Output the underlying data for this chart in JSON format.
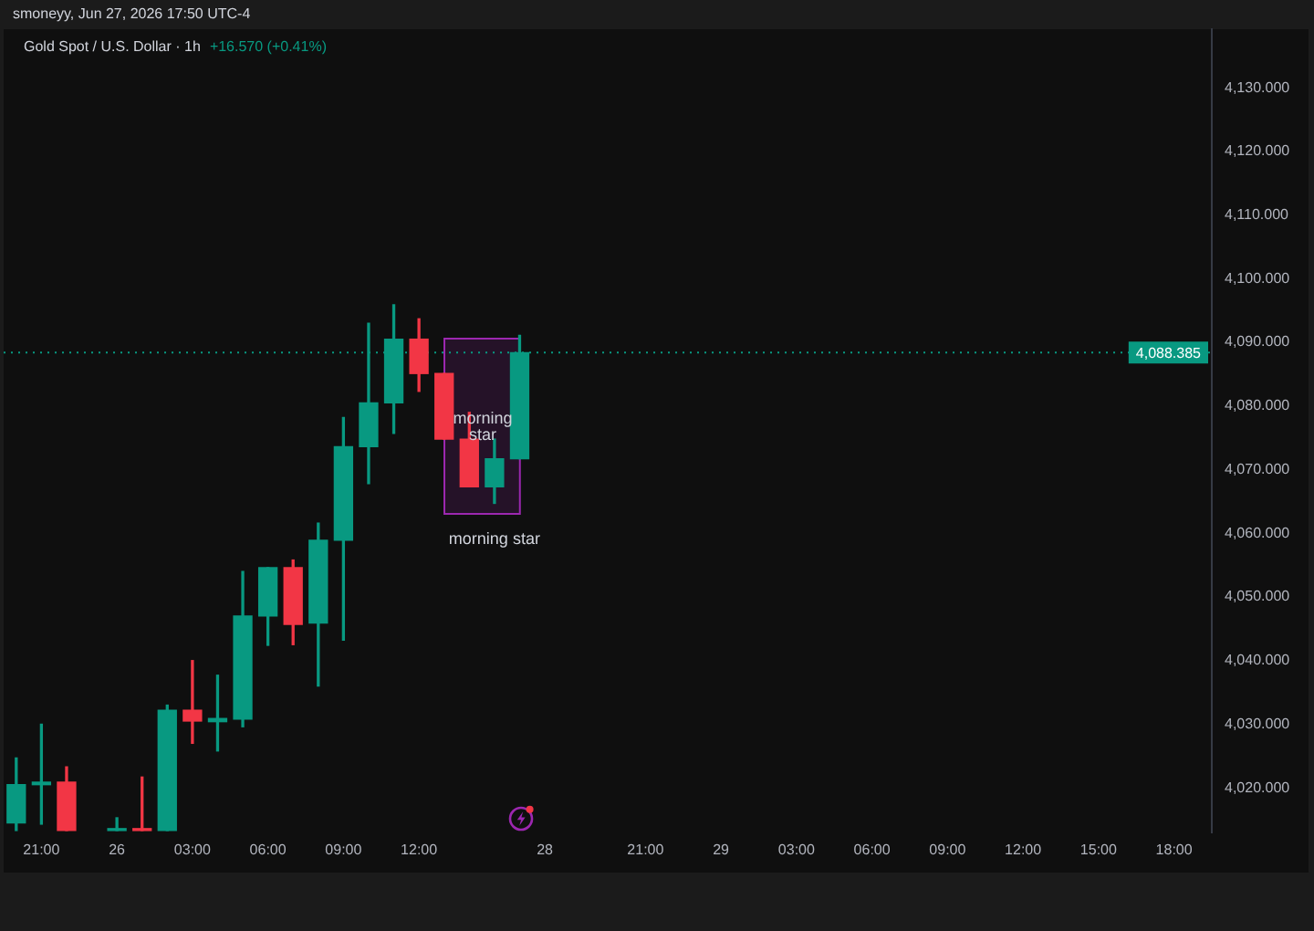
{
  "chart_data": {
    "type": "candlestick",
    "title": "Gold Spot / U.S. Dollar · 1h",
    "subtitle": "+16.570 (+0.41%)",
    "annotations": [
      "smoneyy, Jun 27, 2026 17:50 UTC-4",
      "morning star",
      "morning star"
    ],
    "categories": [
      null,
      "21:00",
      null,
      null,
      "26",
      null,
      null,
      "03:00",
      null,
      null,
      "06:00",
      null,
      null,
      "09:00",
      null,
      null,
      "12:00",
      null,
      null,
      null,
      null,
      "28",
      null,
      null,
      null,
      "21:00",
      null,
      null,
      "29",
      null,
      null,
      "03:00",
      null,
      null,
      "06:00",
      null,
      null,
      "09:00",
      null,
      null,
      "12:00",
      null,
      null,
      "15:00",
      null,
      null,
      "18:00",
      null
    ],
    "ohlc": [
      [
        4014.5,
        4024.7,
        4013.3,
        4020.5
      ],
      [
        4020.5,
        4030.0,
        4014.3,
        4020.9
      ],
      [
        4020.9,
        4023.3,
        4013.3,
        4013.3
      ],
      null,
      [
        4013.3,
        4015.3,
        4013.3,
        4013.6
      ],
      [
        4013.6,
        4021.7,
        4013.3,
        4013.3
      ],
      [
        4013.3,
        4033.0,
        4013.3,
        4032.2
      ],
      [
        4032.2,
        4040.0,
        4027.0,
        4030.5
      ],
      [
        4030.4,
        4037.7,
        4025.8,
        4030.9
      ],
      [
        4030.8,
        4054.0,
        4029.6,
        4047.0
      ],
      [
        4047.0,
        4054.6,
        4042.4,
        4054.6
      ],
      [
        4054.6,
        4055.8,
        4042.5,
        4045.7
      ],
      [
        4045.9,
        4061.6,
        4036.0,
        4058.9
      ],
      [
        4058.9,
        4078.2,
        4043.2,
        4073.6
      ],
      [
        4073.6,
        4093.0,
        4067.8,
        4080.5
      ],
      [
        4080.5,
        4095.9,
        4075.7,
        4090.5
      ],
      [
        4090.5,
        4093.7,
        4082.3,
        4085.1
      ],
      [
        4085.1,
        4085.1,
        4074.8,
        4074.8
      ],
      [
        4074.8,
        4079.0,
        4067.3,
        4067.3
      ],
      [
        4067.3,
        4074.8,
        4064.7,
        4071.7
      ],
      [
        4071.7,
        4091.1,
        4071.7,
        4088.385
      ],
      null,
      null,
      null,
      null,
      null,
      null,
      null,
      null,
      null,
      null,
      null,
      null,
      null,
      null,
      null,
      null,
      null,
      null,
      null,
      null,
      null,
      null,
      null,
      null,
      null,
      null,
      null
    ],
    "colors": [
      "#089981",
      "#089981",
      "#f23645",
      null,
      "#089981",
      "#f23645",
      "#089981",
      "#f23645",
      "#089981",
      "#089981",
      "#089981",
      "#f23645",
      "#089981",
      "#089981",
      "#089981",
      "#089981",
      "#f23645",
      "#f23645",
      "#f23645",
      "#089981",
      "#089981",
      null,
      null,
      null,
      null,
      null,
      null,
      null,
      null,
      null,
      null,
      null,
      null,
      null,
      null,
      null,
      null,
      null,
      null,
      null,
      null,
      null,
      null,
      null,
      null,
      null,
      null,
      null
    ],
    "ylim": [
      4013.0,
      4139.2
    ],
    "yticks": [
      {
        "value": 4020,
        "label": "4,020.000"
      },
      {
        "value": 4030,
        "label": "4,030.000"
      },
      {
        "value": 4040,
        "label": "4,040.000"
      },
      {
        "value": 4050,
        "label": "4,050.000"
      },
      {
        "value": 4060,
        "label": "4,060.000"
      },
      {
        "value": 4070,
        "label": "4,070.000"
      },
      {
        "value": 4080,
        "label": "4,080.000"
      },
      {
        "value": 4090,
        "label": "4,090.000"
      },
      {
        "value": 4100,
        "label": "4,100.000"
      },
      {
        "value": 4110,
        "label": "4,110.000"
      },
      {
        "value": 4120,
        "label": "4,120.000"
      },
      {
        "value": 4130,
        "label": "4,130.000"
      }
    ],
    "ref_lines": [
      {
        "axis": "y",
        "value": 4088.385,
        "label": "4,088.385",
        "color": "#089981",
        "line_style": "dotted"
      }
    ],
    "grid": false,
    "legend": false
  }
}
